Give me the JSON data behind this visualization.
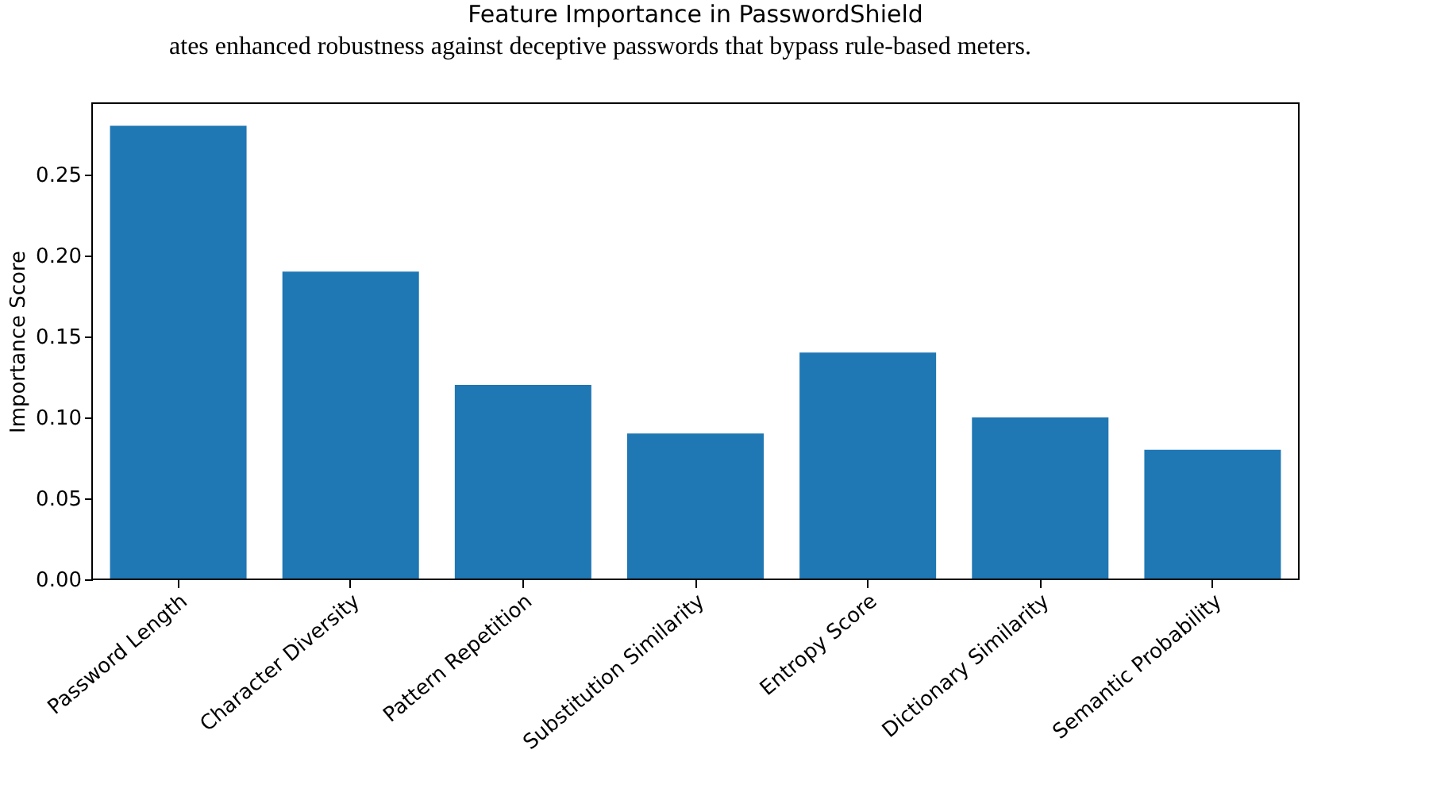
{
  "chart_data": {
    "type": "bar",
    "title": "Feature Importance in PasswordShield",
    "ylabel": "Importance Score",
    "annotations": [
      "ates enhanced robustness against deceptive passwords that bypass rule-based meters."
    ],
    "categories": [
      "Password Length",
      "Character Diversity",
      "Pattern Repetition",
      "Substitution Similarity",
      "Entropy Score",
      "Dictionary Similarity",
      "Semantic Probability"
    ],
    "values": [
      0.28,
      0.19,
      0.12,
      0.09,
      0.14,
      0.1,
      0.08
    ],
    "color": "#1f77b4",
    "ylim": [
      0,
      0.294
    ],
    "yticks": [
      {
        "value": 0,
        "label": "0.00"
      },
      0.05,
      {
        "value": 0.1,
        "label": "0.10"
      },
      0.15,
      {
        "value": 0.2,
        "label": "0.20"
      },
      0.25
    ],
    "grid": false
  }
}
